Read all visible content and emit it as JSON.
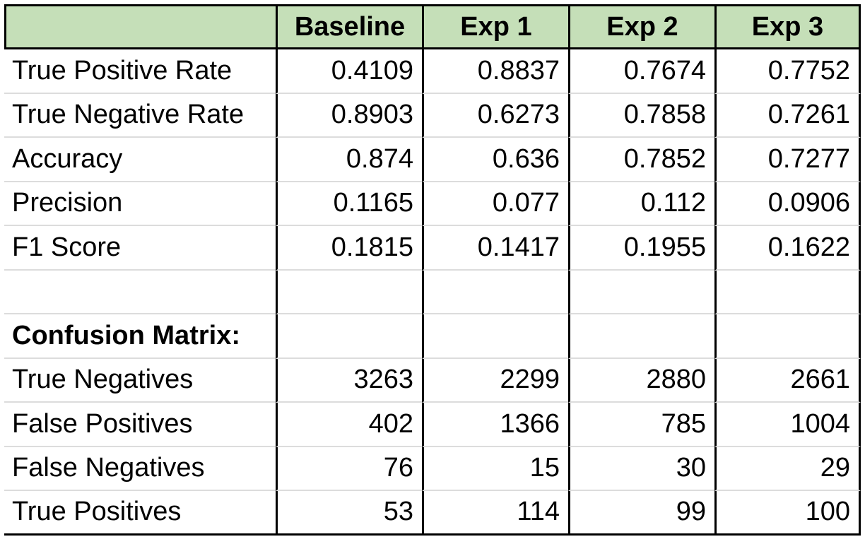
{
  "table": {
    "headers": [
      "",
      "Baseline",
      "Exp 1",
      "Exp 2",
      "Exp 3"
    ],
    "metrics": [
      {
        "label": "True Positive Rate",
        "values": [
          "0.4109",
          "0.8837",
          "0.7674",
          "0.7752"
        ]
      },
      {
        "label": "True Negative Rate",
        "values": [
          "0.8903",
          "0.6273",
          "0.7858",
          "0.7261"
        ]
      },
      {
        "label": "Accuracy",
        "values": [
          "0.874",
          "0.636",
          "0.7852",
          "0.7277"
        ]
      },
      {
        "label": "Precision",
        "values": [
          "0.1165",
          "0.077",
          "0.112",
          "0.0906"
        ]
      },
      {
        "label": "F1 Score",
        "values": [
          "0.1815",
          "0.1417",
          "0.1955",
          "0.1622"
        ]
      }
    ],
    "section_label": "Confusion Matrix:",
    "confusion": [
      {
        "label": "True Negatives",
        "values": [
          "3263",
          "2299",
          "2880",
          "2661"
        ]
      },
      {
        "label": "False Positives",
        "values": [
          "402",
          "1366",
          "785",
          "1004"
        ]
      },
      {
        "label": "False Negatives",
        "values": [
          "76",
          "15",
          "30",
          "29"
        ]
      },
      {
        "label": "True Positives",
        "values": [
          "53",
          "114",
          "99",
          "100"
        ]
      }
    ]
  },
  "colors": {
    "header_fill": "#c5dfb8",
    "grid_line": "#dcdcdc",
    "border": "#000000"
  }
}
